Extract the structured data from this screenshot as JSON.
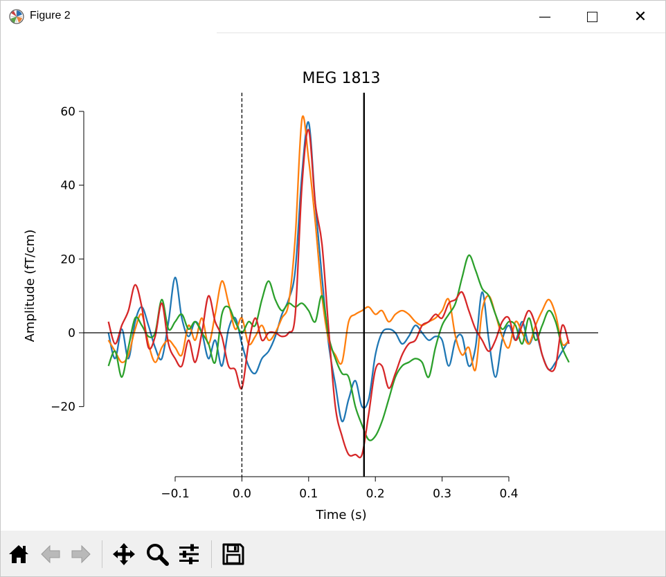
{
  "window": {
    "title": "Figure 2",
    "controls": {
      "minimize": "—",
      "close": "✕"
    }
  },
  "toolbar": {
    "buttons": [
      "home-icon",
      "back-arrow-icon",
      "forward-arrow-icon",
      "pan-icon",
      "zoom-icon",
      "configure-subplots-icon",
      "save-icon"
    ]
  },
  "chart_data": {
    "type": "line",
    "title": "MEG 1813",
    "xlabel": "Time (s)",
    "ylabel": "Amplitude (fT/cm)",
    "xlim": [
      -0.2,
      0.5
    ],
    "ylim": [
      -40,
      65
    ],
    "xticks": [
      -0.1,
      0.0,
      0.1,
      0.2,
      0.3,
      0.4
    ],
    "xtick_labels": [
      "−0.1",
      "0.0",
      "0.1",
      "0.2",
      "0.3",
      "0.4"
    ],
    "yticks": [
      -20,
      0,
      20,
      40,
      60
    ],
    "ytick_labels": [
      "−20",
      "0",
      "20",
      "40",
      "60"
    ],
    "grid": false,
    "annotations": [
      {
        "kind": "vline",
        "x": 0.0,
        "style": "dashed",
        "color": "#000000"
      },
      {
        "kind": "vline",
        "x": 0.183,
        "style": "solid",
        "color": "#000000"
      },
      {
        "kind": "hline",
        "y": 0,
        "style": "solid",
        "color": "#000000"
      }
    ],
    "series": [
      {
        "color": "#1f77b4",
        "x": [
          -0.2,
          -0.19,
          -0.18,
          -0.17,
          -0.16,
          -0.15,
          -0.14,
          -0.13,
          -0.12,
          -0.11,
          -0.1,
          -0.09,
          -0.08,
          -0.07,
          -0.06,
          -0.05,
          -0.04,
          -0.03,
          -0.02,
          -0.01,
          0.0,
          0.01,
          0.02,
          0.03,
          0.04,
          0.05,
          0.06,
          0.07,
          0.08,
          0.09,
          0.1,
          0.11,
          0.12,
          0.13,
          0.14,
          0.15,
          0.16,
          0.17,
          0.18,
          0.19,
          0.2,
          0.21,
          0.22,
          0.23,
          0.24,
          0.25,
          0.26,
          0.27,
          0.28,
          0.29,
          0.3,
          0.31,
          0.32,
          0.33,
          0.34,
          0.35,
          0.36,
          0.37,
          0.38,
          0.39,
          0.4,
          0.41,
          0.42,
          0.43,
          0.44,
          0.45,
          0.46,
          0.47,
          0.48,
          0.49
        ],
        "y": [
          0,
          -7,
          1,
          -7,
          3,
          7,
          2,
          -4,
          -7,
          3,
          15,
          4,
          -1,
          3,
          0,
          -7,
          -2,
          -9,
          1,
          4,
          -3,
          -9,
          -11,
          -7,
          -5,
          -1,
          5,
          9,
          17,
          43,
          57,
          35,
          15,
          -3,
          -14,
          -24,
          -18,
          -13,
          -20,
          -18,
          -6,
          0,
          1,
          0,
          -3,
          -1,
          2,
          0,
          -2,
          -1,
          -2,
          -9,
          -2,
          -1,
          -9,
          -4,
          11,
          -2,
          -12,
          -2,
          2,
          -2,
          3,
          -3,
          0,
          -6,
          -10,
          -8,
          -5,
          -2
        ]
      },
      {
        "color": "#ff7f0e",
        "x": [
          -0.2,
          -0.19,
          -0.18,
          -0.17,
          -0.16,
          -0.15,
          -0.14,
          -0.13,
          -0.12,
          -0.11,
          -0.1,
          -0.09,
          -0.08,
          -0.07,
          -0.06,
          -0.05,
          -0.04,
          -0.03,
          -0.02,
          -0.01,
          0.0,
          0.01,
          0.02,
          0.03,
          0.04,
          0.05,
          0.06,
          0.07,
          0.08,
          0.09,
          0.1,
          0.11,
          0.12,
          0.13,
          0.14,
          0.15,
          0.16,
          0.17,
          0.18,
          0.19,
          0.2,
          0.21,
          0.22,
          0.23,
          0.24,
          0.25,
          0.26,
          0.27,
          0.28,
          0.29,
          0.3,
          0.31,
          0.32,
          0.33,
          0.34,
          0.35,
          0.36,
          0.37,
          0.38,
          0.39,
          0.4,
          0.41,
          0.42,
          0.43,
          0.44,
          0.45,
          0.46,
          0.47,
          0.48,
          0.49
        ],
        "y": [
          -2,
          -5,
          -8,
          -6,
          1,
          5,
          -3,
          -8,
          -4,
          -2,
          -4,
          -6,
          2,
          -2,
          4,
          -3,
          5,
          14,
          8,
          1,
          4,
          -3,
          -1,
          2,
          -2,
          0,
          4,
          8,
          26,
          58,
          47,
          30,
          10,
          -2,
          -6,
          -8,
          3,
          5,
          6,
          7,
          5,
          6,
          3,
          5,
          6,
          5,
          3,
          2,
          3,
          4,
          6,
          9,
          -1,
          -6,
          -4,
          -10,
          6,
          10,
          5,
          -1,
          -4,
          3,
          0,
          -3,
          2,
          6,
          9,
          5,
          -3,
          -2
        ]
      },
      {
        "color": "#2ca02c",
        "x": [
          -0.2,
          -0.19,
          -0.18,
          -0.17,
          -0.16,
          -0.15,
          -0.14,
          -0.13,
          -0.12,
          -0.11,
          -0.1,
          -0.09,
          -0.08,
          -0.07,
          -0.06,
          -0.05,
          -0.04,
          -0.03,
          -0.02,
          -0.01,
          0.0,
          0.01,
          0.02,
          0.03,
          0.04,
          0.05,
          0.06,
          0.07,
          0.08,
          0.09,
          0.1,
          0.11,
          0.12,
          0.13,
          0.14,
          0.15,
          0.16,
          0.17,
          0.18,
          0.19,
          0.2,
          0.21,
          0.22,
          0.23,
          0.24,
          0.25,
          0.26,
          0.27,
          0.28,
          0.29,
          0.3,
          0.31,
          0.32,
          0.33,
          0.34,
          0.35,
          0.36,
          0.37,
          0.38,
          0.39,
          0.4,
          0.41,
          0.42,
          0.43,
          0.44,
          0.45,
          0.46,
          0.47,
          0.48,
          0.49
        ],
        "y": [
          -9,
          -5,
          -12,
          -4,
          4,
          2,
          -1,
          0,
          9,
          1,
          3,
          5,
          1,
          3,
          0,
          -3,
          -8,
          5,
          7,
          3,
          0,
          3,
          2,
          9,
          14,
          9,
          6,
          8,
          7,
          8,
          6,
          3,
          10,
          -1,
          -7,
          -11,
          -12,
          -20,
          -25,
          -29,
          -28,
          -24,
          -18,
          -12,
          -9,
          -8,
          -7,
          -8,
          -12,
          -4,
          2,
          5,
          8,
          15,
          21,
          17,
          12,
          10,
          5,
          1,
          3,
          2,
          -3,
          4,
          -2,
          2,
          6,
          3,
          -4,
          -8
        ]
      },
      {
        "color": "#d62728",
        "x": [
          -0.2,
          -0.19,
          -0.18,
          -0.17,
          -0.16,
          -0.15,
          -0.14,
          -0.13,
          -0.12,
          -0.11,
          -0.1,
          -0.09,
          -0.08,
          -0.07,
          -0.06,
          -0.05,
          -0.04,
          -0.03,
          -0.02,
          -0.01,
          0.0,
          0.01,
          0.02,
          0.03,
          0.04,
          0.05,
          0.06,
          0.07,
          0.08,
          0.09,
          0.1,
          0.11,
          0.12,
          0.13,
          0.14,
          0.15,
          0.16,
          0.17,
          0.18,
          0.19,
          0.2,
          0.21,
          0.22,
          0.23,
          0.24,
          0.25,
          0.26,
          0.27,
          0.28,
          0.29,
          0.3,
          0.31,
          0.32,
          0.33,
          0.34,
          0.35,
          0.36,
          0.37,
          0.38,
          0.39,
          0.4,
          0.41,
          0.42,
          0.43,
          0.44,
          0.45,
          0.46,
          0.47,
          0.48,
          0.49
        ],
        "y": [
          3,
          -3,
          2,
          6,
          13,
          7,
          -4,
          -1,
          8,
          -3,
          -7,
          -9,
          -2,
          -8,
          0,
          10,
          3,
          -1,
          -9,
          -10,
          -15,
          -3,
          4,
          -2,
          0,
          0,
          -1,
          0,
          5,
          40,
          55,
          35,
          24,
          1,
          -20,
          -28,
          -33,
          -33,
          -33,
          -22,
          -10,
          -9,
          -15,
          -11,
          -6,
          -3,
          -2,
          2,
          3,
          5,
          4,
          8,
          9,
          11,
          6,
          1,
          -2,
          -5,
          -2,
          3,
          4,
          -2,
          2,
          6,
          2,
          -6,
          -10,
          -9,
          2,
          -3
        ]
      }
    ]
  }
}
